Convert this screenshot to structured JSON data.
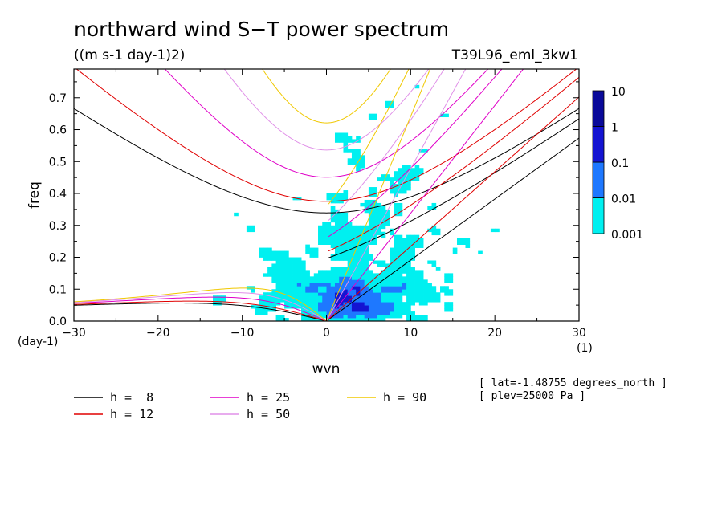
{
  "chart_data": {
    "type": "heatmap",
    "title": "northward wind S−T power spectrum",
    "subtitle": "((m s-1 day-1)2)",
    "experiment": "T39L96_eml_3kw1",
    "xlabel": "wvn",
    "ylabel": "freq",
    "x_unit": "(1)",
    "y_unit": "(day-1)",
    "xlim": [
      -30,
      30
    ],
    "ylim": [
      0,
      0.79
    ],
    "x_ticks": [
      -30,
      -20,
      -10,
      0,
      10,
      20,
      30
    ],
    "x_tick_labels": [
      "−30",
      "−20",
      "−10",
      "0",
      "10",
      "20",
      "30"
    ],
    "y_ticks": [
      0,
      0.1,
      0.2,
      0.3,
      0.4,
      0.5,
      0.6,
      0.7
    ],
    "y_tick_labels": [
      "0.0",
      "0.1",
      "0.2",
      "0.3",
      "0.4",
      "0.5",
      "0.6",
      "0.7"
    ],
    "colorbar": {
      "levels": [
        "0.001",
        "0.01",
        "0.1",
        "1",
        "10"
      ],
      "colors": [
        "#00f0f0",
        "#1e78ff",
        "#1414d2",
        "#0a0a9a"
      ]
    },
    "dispersion_curves": [
      {
        "label": "h =  8",
        "h": 8,
        "color": "#000000"
      },
      {
        "label": "h = 12",
        "h": 12,
        "color": "#e00000"
      },
      {
        "label": "h = 25",
        "h": 25,
        "color": "#e000c8"
      },
      {
        "label": "h = 50",
        "h": 50,
        "color": "#e090e8"
      },
      {
        "label": "h = 90",
        "h": 90,
        "color": "#f0c800"
      }
    ],
    "annotations": [
      "[ lat=-1.48755 degrees_north ]",
      "[ plev=25000 Pa ]"
    ]
  }
}
